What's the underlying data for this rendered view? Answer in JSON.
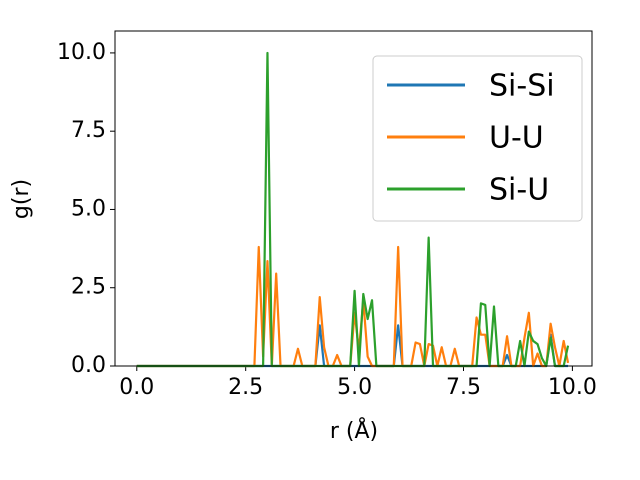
{
  "chart_data": {
    "type": "line",
    "xlabel": "r (Å)",
    "ylabel": "g(r)",
    "xlim": [
      -0.5,
      10.45
    ],
    "ylim": [
      0,
      10.7
    ],
    "xticks": [
      {
        "value": 0,
        "label": "0.0"
      },
      {
        "value": 2.5,
        "label": "2.5"
      },
      {
        "value": 5,
        "label": "5.0"
      },
      {
        "value": 7.5,
        "label": "7.5"
      },
      {
        "value": 10,
        "label": "10.0"
      }
    ],
    "yticks": [
      {
        "value": 0,
        "label": "0.0"
      },
      {
        "value": 2.5,
        "label": "2.5"
      },
      {
        "value": 5,
        "label": "5.0"
      },
      {
        "value": 7.5,
        "label": "7.5"
      },
      {
        "value": 10,
        "label": "10.0"
      }
    ],
    "legend": "upper right",
    "x": [
      0,
      0.1,
      0.2,
      0.3,
      0.4,
      0.5,
      0.6,
      0.7,
      0.8,
      0.9,
      1,
      1.1,
      1.2,
      1.3,
      1.4,
      1.5,
      1.6,
      1.7,
      1.8,
      1.9,
      2,
      2.1,
      2.2,
      2.3,
      2.4,
      2.5,
      2.6,
      2.7,
      2.8,
      2.9,
      3,
      3.1,
      3.2,
      3.3,
      3.4,
      3.5,
      3.6,
      3.7,
      3.8,
      3.9,
      4,
      4.1,
      4.2,
      4.3,
      4.4,
      4.5,
      4.6,
      4.7,
      4.8,
      4.9,
      5,
      5.1,
      5.2,
      5.3,
      5.4,
      5.5,
      5.6,
      5.7,
      5.8,
      5.9,
      6,
      6.1,
      6.2,
      6.3,
      6.4,
      6.5,
      6.6,
      6.7,
      6.8,
      6.9,
      7,
      7.1,
      7.2,
      7.3,
      7.4,
      7.5,
      7.6,
      7.7,
      7.8,
      7.9,
      8,
      8.1,
      8.2,
      8.3,
      8.4,
      8.5,
      8.6,
      8.7,
      8.8,
      8.9,
      9,
      9.1,
      9.2,
      9.3,
      9.4,
      9.5,
      9.6,
      9.7,
      9.8,
      9.9
    ],
    "series": [
      {
        "name": "Si-Si",
        "color": "#1f77b4",
        "values": [
          0,
          0,
          0,
          0,
          0,
          0,
          0,
          0,
          0,
          0,
          0,
          0,
          0,
          0,
          0,
          0,
          0,
          0,
          0,
          0,
          0,
          0,
          0,
          0,
          0,
          0,
          0,
          0,
          0,
          0,
          0,
          0,
          0,
          0,
          0,
          0,
          0,
          0,
          0,
          0,
          0,
          0,
          1.3,
          0,
          0,
          0,
          0,
          0,
          0,
          0,
          0,
          0,
          0,
          0,
          0,
          0,
          0,
          0,
          0,
          0,
          1.3,
          0,
          0,
          0,
          0,
          0,
          0,
          0,
          0,
          0,
          0,
          0,
          0,
          0,
          0,
          0,
          0,
          0,
          0,
          0,
          0,
          0,
          0,
          0,
          0,
          0.35,
          0,
          0,
          0,
          0,
          0,
          0,
          0,
          0,
          0,
          1.0,
          0,
          0,
          0,
          0
        ]
      },
      {
        "name": "U-U",
        "color": "#ff7f0e",
        "values": [
          0,
          0,
          0,
          0,
          0,
          0,
          0,
          0,
          0,
          0,
          0,
          0,
          0,
          0,
          0,
          0,
          0,
          0,
          0,
          0,
          0,
          0,
          0,
          0,
          0,
          0,
          0,
          0,
          3.8,
          0.3,
          3.35,
          0,
          2.95,
          0,
          0,
          0,
          0,
          0.55,
          0,
          0,
          0,
          0,
          2.2,
          0.6,
          0,
          0,
          0.35,
          0,
          0,
          0,
          1.7,
          0.5,
          2.1,
          0.3,
          0,
          0,
          0,
          0,
          0,
          0,
          3.8,
          0,
          0,
          0,
          0.75,
          0.7,
          0,
          0.7,
          0.65,
          0,
          0.6,
          0,
          0,
          0.55,
          0,
          0,
          0,
          0,
          1.55,
          1.0,
          1.0,
          0,
          0,
          0,
          0,
          0.95,
          0,
          0,
          0,
          0.9,
          1.7,
          0,
          0.4,
          0,
          0,
          1.35,
          0.6,
          0,
          0.8,
          0.1
        ]
      },
      {
        "name": "Si-U",
        "color": "#2ca02c",
        "values": [
          0,
          0,
          0,
          0,
          0,
          0,
          0,
          0,
          0,
          0,
          0,
          0,
          0,
          0,
          0,
          0,
          0,
          0,
          0,
          0,
          0,
          0,
          0,
          0,
          0,
          0,
          0,
          0,
          0,
          0,
          10.0,
          0,
          0,
          0,
          0,
          0,
          0,
          0,
          0,
          0,
          0,
          0,
          0,
          0,
          0,
          0,
          0,
          0,
          0,
          0,
          2.4,
          0,
          2.3,
          1.5,
          2.1,
          0,
          0,
          0,
          0,
          0,
          0,
          0,
          0,
          0,
          0,
          0,
          0,
          4.1,
          0,
          0,
          0,
          0,
          0,
          0,
          0,
          0,
          0,
          0,
          0,
          2.0,
          1.95,
          0,
          1.9,
          0,
          0,
          0,
          0,
          0,
          0.8,
          0,
          1.1,
          0.8,
          0.7,
          0.25,
          0,
          0.9,
          0,
          0,
          0,
          0.65
        ]
      }
    ]
  }
}
